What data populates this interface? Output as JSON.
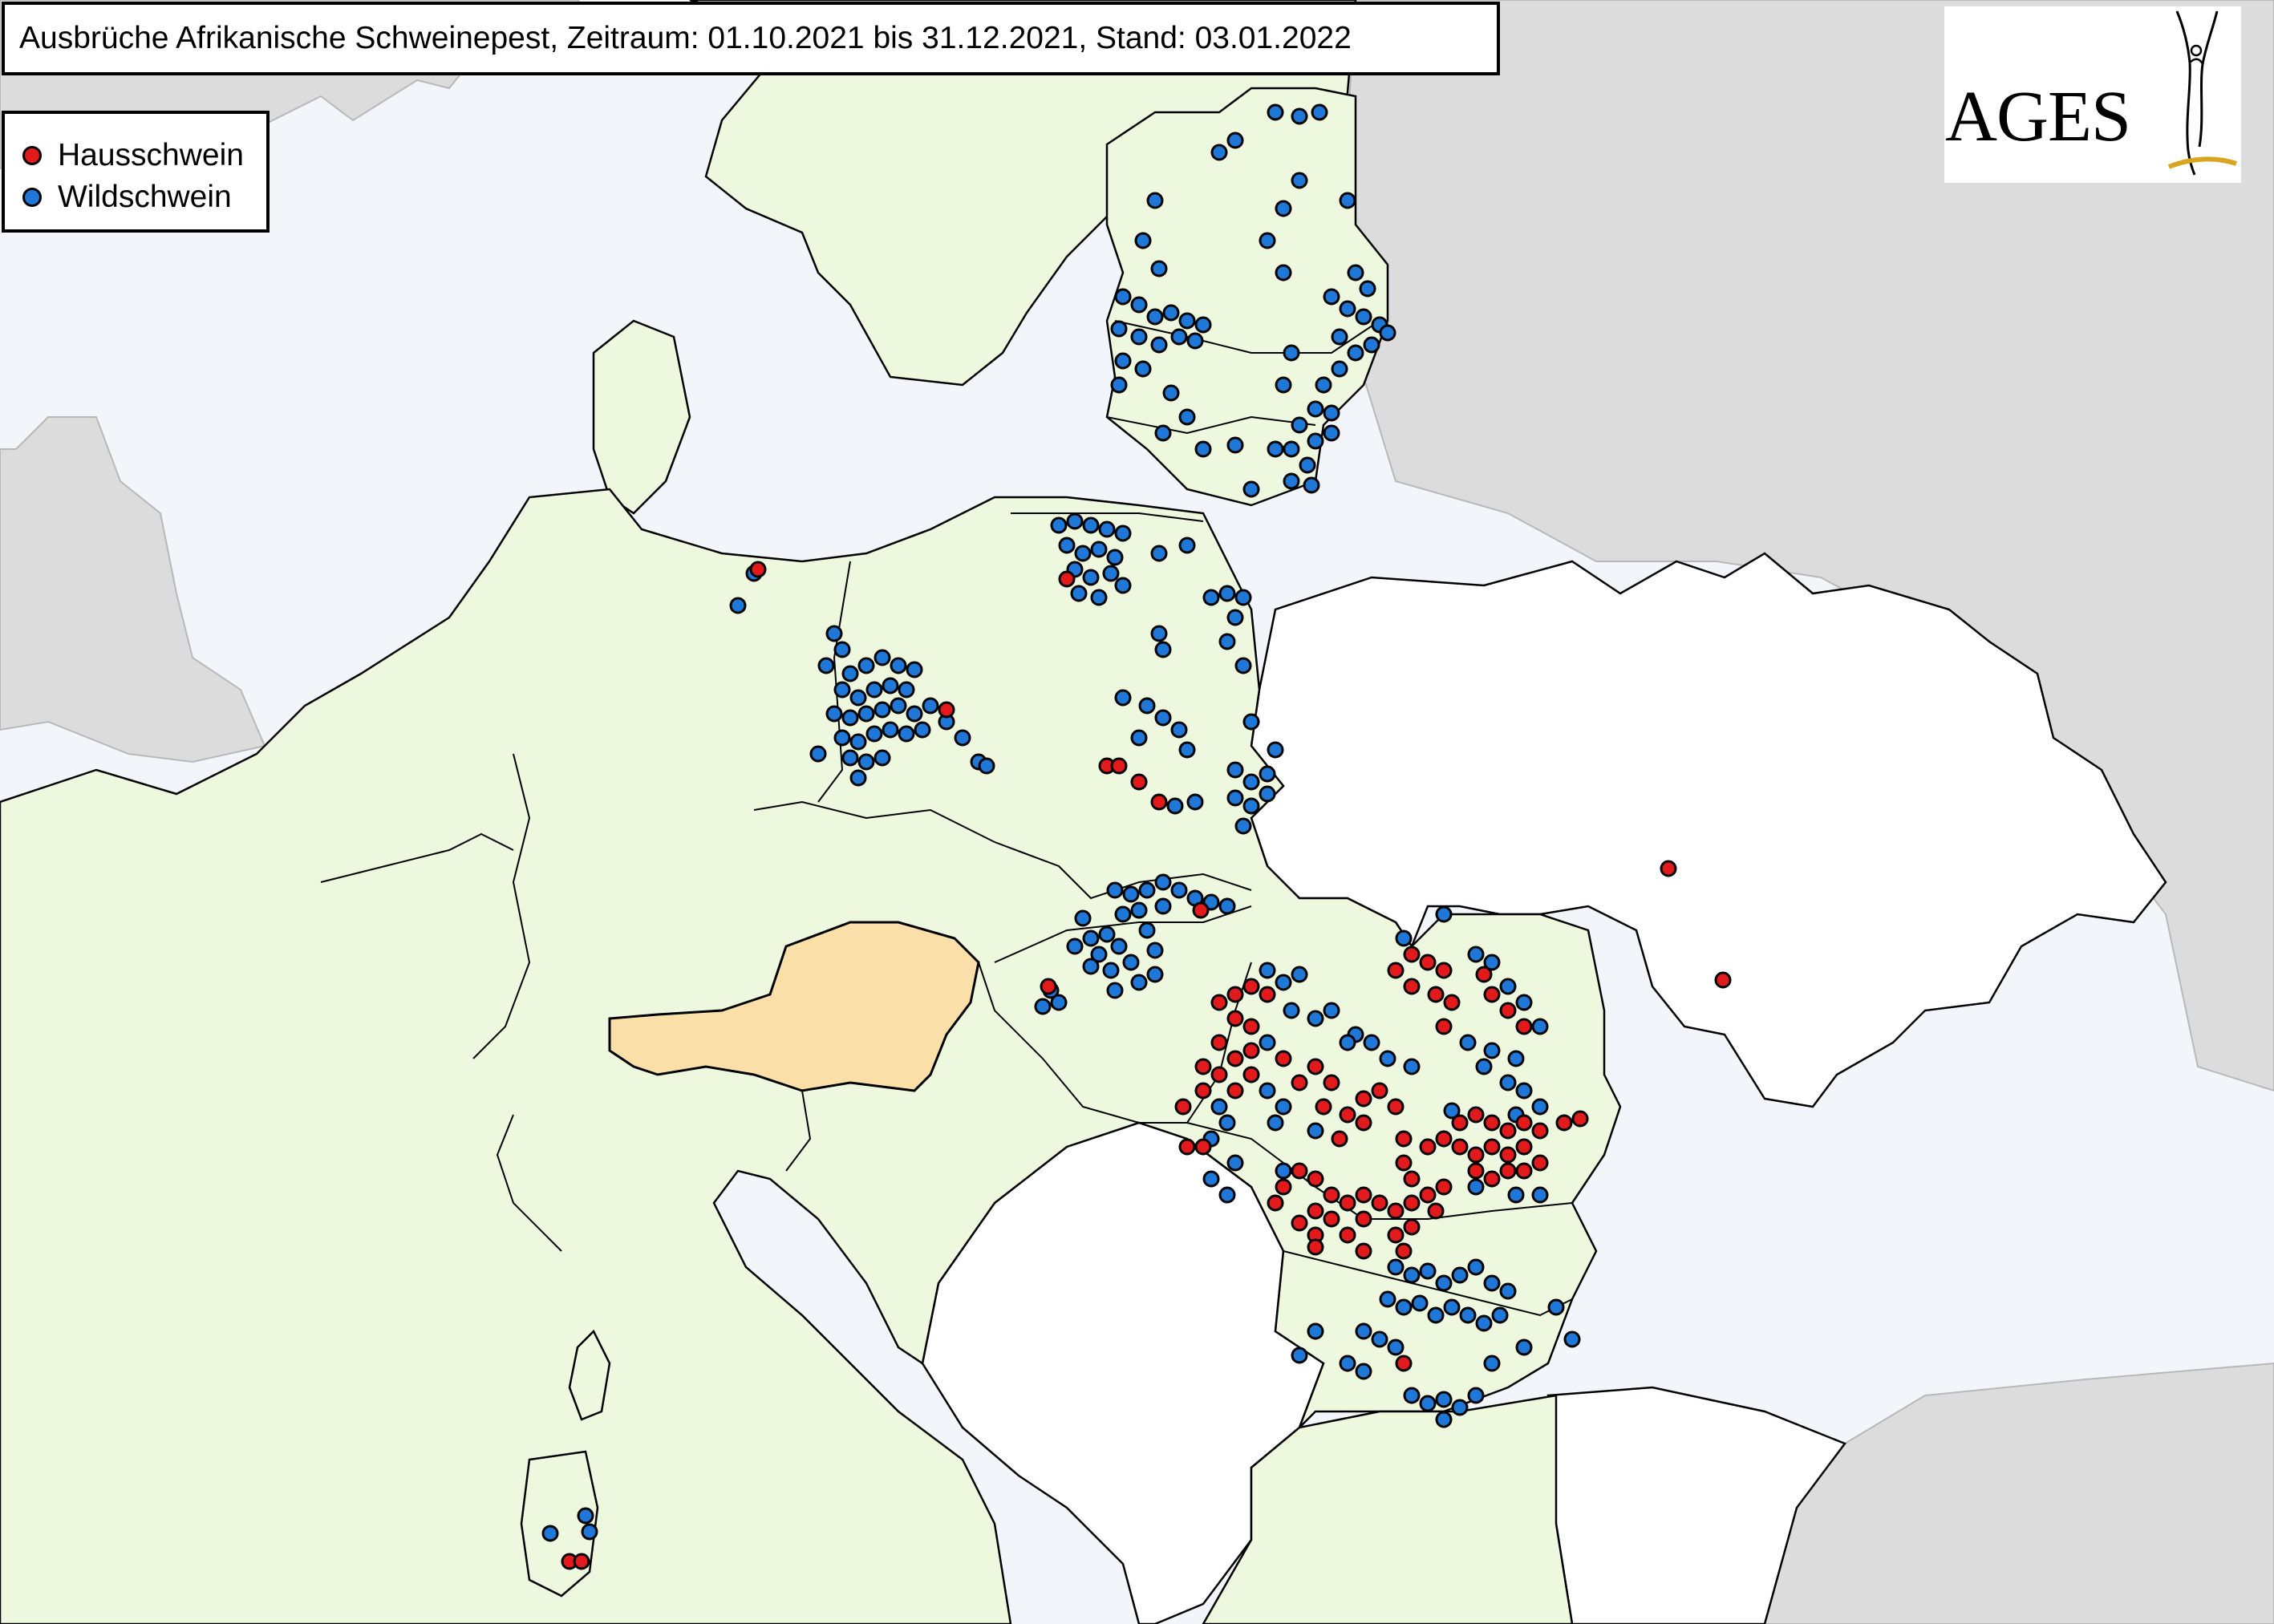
{
  "title": "Ausbrüche Afrikanische Schweinepest, Zeitraum: 01.10.2021 bis 31.12.2021, Stand: 03.01.2022",
  "legend": {
    "items": [
      {
        "label": "Hausschwein",
        "color": "#e31a1c"
      },
      {
        "label": "Wildschwein",
        "color": "#1f78d8"
      }
    ]
  },
  "logo": {
    "text": "AGES",
    "accent_color": "#d9a520"
  },
  "colors": {
    "sea": "#f2f6fb",
    "eu_land": "#eef8de",
    "austria": "#fbdfa8",
    "non_eu_land": "#ffffff",
    "outside_land": "#dcdcdc",
    "borders": "#000000"
  }
}
